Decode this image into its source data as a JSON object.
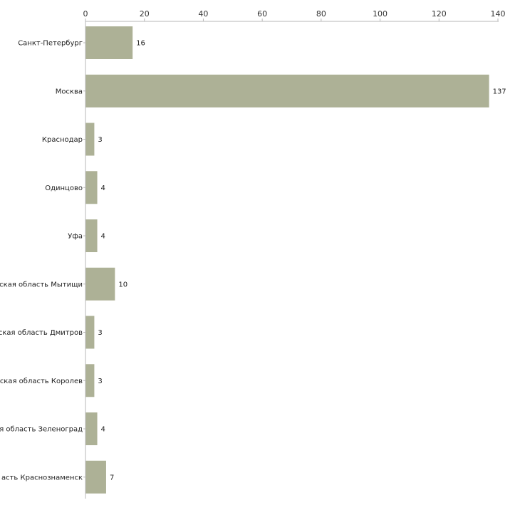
{
  "chart_data": {
    "type": "bar",
    "orientation": "horizontal",
    "title": "",
    "xlabel": "",
    "ylabel": "",
    "xlim": [
      0,
      140
    ],
    "x_ticks": [
      0,
      20,
      40,
      60,
      80,
      100,
      120,
      140
    ],
    "x_tick_labels": [
      "0",
      "20",
      "40",
      "60",
      "80",
      "100",
      "120",
      "140"
    ],
    "x_axis_position": "top",
    "grid": false,
    "legend": "none",
    "bar_color": "#adb196",
    "categories": [
      "Санкт-Петербург",
      "Москва",
      "Краснодар",
      "Одинцово",
      "Уфа",
      "ская область Мытищи",
      "ская область Дмитров",
      "ская область Королев",
      "я область Зеленоград",
      "асть Краснознаменск"
    ],
    "values": [
      16,
      137,
      3,
      4,
      4,
      10,
      3,
      3,
      4,
      7
    ],
    "value_labels": [
      "16",
      "137",
      "3",
      "4",
      "4",
      "10",
      "3",
      "3",
      "4",
      "7"
    ]
  }
}
